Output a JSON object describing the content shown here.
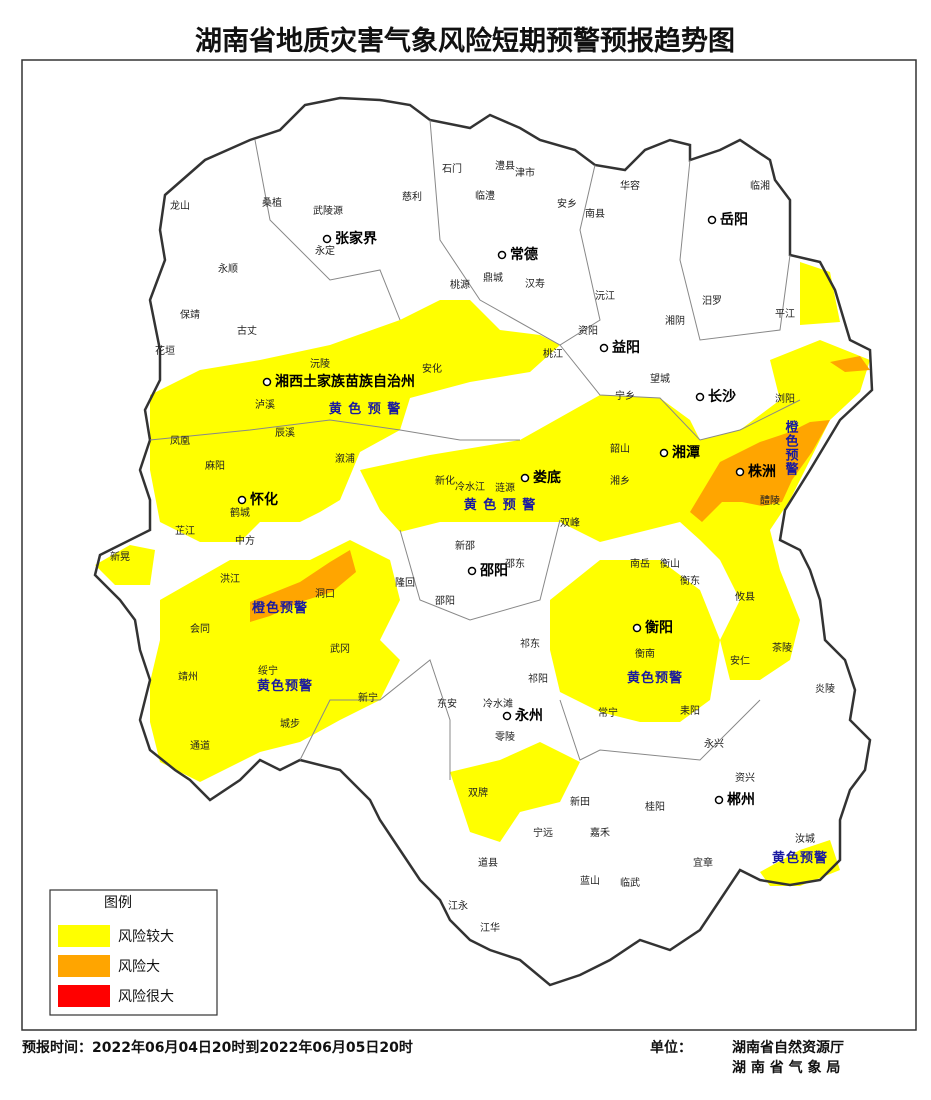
{
  "title": "湖南省地质灾害气象风险短期预警预报趋势图",
  "map": {
    "cities": [
      "张家界",
      "常德",
      "益阳",
      "岳阳",
      "长沙",
      "湘潭",
      "株洲",
      "娄底",
      "怀化",
      "邵阳",
      "衡阳",
      "永州",
      "郴州",
      "湘西土家族苗族自治州"
    ],
    "counties": [
      "龙山",
      "桑植",
      "武陵源",
      "慈利",
      "永定",
      "石门",
      "澧县",
      "津市",
      "临澧",
      "安乡",
      "华容",
      "南县",
      "临湘",
      "永顺",
      "桃源",
      "鼎城",
      "汉寿",
      "沅江",
      "汨罗",
      "平江",
      "湘阴",
      "保靖",
      "古丈",
      "花垣",
      "沅陵",
      "安化",
      "资阳",
      "桃江",
      "望城",
      "浏阳",
      "宁乡",
      "泸溪",
      "辰溪",
      "凤凰",
      "麻阳",
      "溆浦",
      "韶山",
      "湘乡",
      "醴陵",
      "新化",
      "冷水江",
      "涟源",
      "双峰",
      "鹤城",
      "芷江",
      "中方",
      "新晃",
      "洪江",
      "新邵",
      "邵东",
      "南岳",
      "衡山",
      "衡东",
      "攸县",
      "隆回",
      "会同",
      "洞口",
      "邵阳",
      "衡南",
      "茶陵",
      "武冈",
      "祁东",
      "靖州",
      "绥宁",
      "新宁",
      "祁阳",
      "耒阳",
      "常宁",
      "安仁",
      "炎陵",
      "通道",
      "城步",
      "东安",
      "冷水滩",
      "零陵",
      "永兴",
      "资兴",
      "双牌",
      "新田",
      "桂阳",
      "嘉禾",
      "宁远",
      "汝城",
      "宜章",
      "道县",
      "临武",
      "蓝山",
      "江永",
      "江华"
    ],
    "warnings": [
      "黄 色 预 警",
      "黄 色 预 警",
      "橙色预警",
      "黄色预警",
      "黄色预警",
      "黄色预警",
      "橙色预警"
    ]
  },
  "legend": {
    "title": "图例",
    "items": [
      {
        "label": "风险较大",
        "color": "#ffff00"
      },
      {
        "label": "风险大",
        "color": "#ffa500"
      },
      {
        "label": "风险很大",
        "color": "#ff0000"
      }
    ]
  },
  "footer": {
    "forecast_time": "预报时间：2022年06月04日20时到2022年06月05日20时",
    "unit_label": "单位：",
    "unit_1": "湖南省自然资源厅",
    "unit_2": "湖 南 省 气 象 局"
  }
}
